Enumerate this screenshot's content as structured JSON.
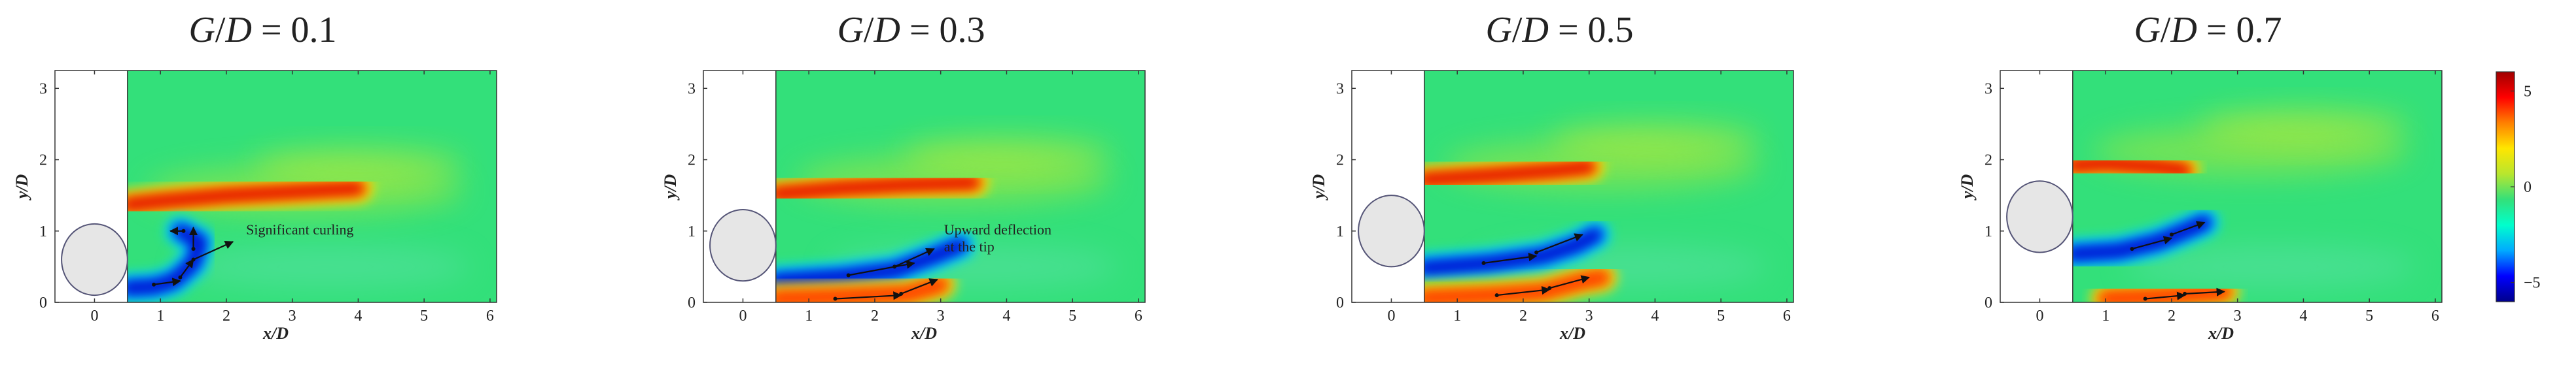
{
  "figure": {
    "type": "contour-panels"
  },
  "colors": {
    "background": "#ffffff",
    "cylinder_fill": "#e6e6e6",
    "cylinder_stroke": "#555577",
    "field_base": "#33e07a",
    "colorbar": [
      "#00008b",
      "#0000ff",
      "#00aaff",
      "#00ffcc",
      "#33e07a",
      "#b8e62e",
      "#ffe600",
      "#ff8000",
      "#ff0000",
      "#a00000"
    ]
  },
  "chart_data": [
    {
      "type": "heatmap",
      "title": "G/D = 0.1",
      "title_parts": {
        "italic_a": "G",
        "slash": "/",
        "italic_b": "D",
        "rest": " = 0.1"
      },
      "xlabel": "x/D",
      "ylabel": "y/D",
      "xlim": [
        -0.6,
        6.1
      ],
      "ylim": [
        0,
        3.25
      ],
      "xticks": [
        0,
        1,
        2,
        3,
        4,
        5,
        6
      ],
      "yticks": [
        0,
        1,
        2,
        3
      ],
      "masked_region": {
        "x": [
          -0.6,
          0.5
        ],
        "y": [
          0,
          3.25
        ]
      },
      "cylinder": {
        "cx": 0,
        "cy": 0.6,
        "r": 0.5
      },
      "annotation": {
        "lines": [
          "Significant curling"
        ],
        "x": 2.3,
        "y": 0.95
      },
      "vorticity_bands": [
        {
          "sign": "positive",
          "path": [
            [
              0.5,
              1.37
            ],
            [
              1.0,
              1.42
            ],
            [
              2.0,
              1.5
            ],
            [
              3.0,
              1.55
            ],
            [
              4.0,
              1.6
            ]
          ],
          "peak": 5
        },
        {
          "sign": "negative",
          "path": [
            [
              0.5,
              0.2
            ],
            [
              0.9,
              0.22
            ],
            [
              1.2,
              0.3
            ],
            [
              1.5,
              0.55
            ],
            [
              1.6,
              0.85
            ],
            [
              1.3,
              1.0
            ]
          ],
          "peak": -5
        },
        {
          "sign": "positive",
          "path": [
            [
              0.5,
              0.05
            ],
            [
              1.0,
              0.05
            ],
            [
              1.5,
              0.05
            ]
          ],
          "peak": 3
        }
      ],
      "arrows": [
        [
          [
            0.9,
            0.25
          ],
          [
            1.3,
            0.3
          ]
        ],
        [
          [
            1.3,
            0.35
          ],
          [
            1.5,
            0.6
          ]
        ],
        [
          [
            1.5,
            0.75
          ],
          [
            1.5,
            1.05
          ]
        ],
        [
          [
            1.5,
            0.6
          ],
          [
            2.1,
            0.85
          ]
        ],
        [
          [
            1.35,
            1.0
          ],
          [
            1.15,
            1.0
          ]
        ]
      ]
    },
    {
      "type": "heatmap",
      "title": "G/D = 0.3",
      "title_parts": {
        "italic_a": "G",
        "slash": "/",
        "italic_b": "D",
        "rest": " = 0.3"
      },
      "xlabel": "x/D",
      "ylabel": "y/D",
      "xlim": [
        -0.6,
        6.1
      ],
      "ylim": [
        0,
        3.25
      ],
      "xticks": [
        0,
        1,
        2,
        3,
        4,
        5,
        6
      ],
      "yticks": [
        0,
        1,
        2,
        3
      ],
      "masked_region": {
        "x": [
          -0.6,
          0.5
        ],
        "y": [
          0,
          3.25
        ]
      },
      "cylinder": {
        "cx": 0,
        "cy": 0.8,
        "r": 0.5
      },
      "annotation": {
        "lines": [
          "Upward deflection",
          "at the tip"
        ],
        "x": 3.05,
        "y": 0.95
      },
      "vorticity_bands": [
        {
          "sign": "positive",
          "path": [
            [
              0.5,
              1.52
            ],
            [
              1.5,
              1.6
            ],
            [
              2.5,
              1.65
            ],
            [
              3.5,
              1.68
            ]
          ],
          "peak": 5
        },
        {
          "sign": "negative",
          "path": [
            [
              0.5,
              0.3
            ],
            [
              1.5,
              0.36
            ],
            [
              2.3,
              0.45
            ],
            [
              2.9,
              0.65
            ],
            [
              3.3,
              0.8
            ]
          ],
          "peak": -5
        },
        {
          "sign": "positive",
          "path": [
            [
              0.5,
              0.05
            ],
            [
              1.5,
              0.08
            ],
            [
              2.5,
              0.12
            ],
            [
              3.0,
              0.25
            ]
          ],
          "peak": 4
        }
      ],
      "arrows": [
        [
          [
            1.6,
            0.38
          ],
          [
            2.6,
            0.55
          ]
        ],
        [
          [
            2.3,
            0.5
          ],
          [
            2.9,
            0.75
          ]
        ],
        [
          [
            1.4,
            0.05
          ],
          [
            2.4,
            0.1
          ]
        ],
        [
          [
            2.4,
            0.12
          ],
          [
            2.95,
            0.32
          ]
        ]
      ]
    },
    {
      "type": "heatmap",
      "title": "G/D = 0.5",
      "title_parts": {
        "italic_a": "G",
        "slash": "/",
        "italic_b": "D",
        "rest": " = 0.5"
      },
      "xlabel": "x/D",
      "ylabel": "y/D",
      "xlim": [
        -0.6,
        6.1
      ],
      "ylim": [
        0,
        3.25
      ],
      "xticks": [
        0,
        1,
        2,
        3,
        4,
        5,
        6
      ],
      "yticks": [
        0,
        1,
        2,
        3
      ],
      "masked_region": {
        "x": [
          -0.6,
          0.5
        ],
        "y": [
          0,
          3.25
        ]
      },
      "cylinder": {
        "cx": 0,
        "cy": 1.0,
        "r": 0.5
      },
      "annotation": null,
      "vorticity_bands": [
        {
          "sign": "positive",
          "path": [
            [
              0.5,
              1.72
            ],
            [
              1.5,
              1.78
            ],
            [
              2.5,
              1.85
            ],
            [
              3.0,
              1.9
            ]
          ],
          "peak": 5
        },
        {
          "sign": "negative",
          "path": [
            [
              0.5,
              0.48
            ],
            [
              1.5,
              0.55
            ],
            [
              2.3,
              0.65
            ],
            [
              2.8,
              0.8
            ],
            [
              3.1,
              0.95
            ]
          ],
          "peak": -5
        },
        {
          "sign": "positive",
          "path": [
            [
              0.5,
              0.06
            ],
            [
              1.5,
              0.1
            ],
            [
              2.3,
              0.15
            ],
            [
              2.9,
              0.3
            ],
            [
              3.2,
              0.35
            ]
          ],
          "peak": 4
        }
      ],
      "arrows": [
        [
          [
            1.4,
            0.55
          ],
          [
            2.2,
            0.65
          ]
        ],
        [
          [
            2.2,
            0.7
          ],
          [
            2.9,
            0.95
          ]
        ],
        [
          [
            1.6,
            0.1
          ],
          [
            2.4,
            0.18
          ]
        ],
        [
          [
            2.4,
            0.2
          ],
          [
            3.0,
            0.35
          ]
        ]
      ]
    },
    {
      "type": "heatmap",
      "title": "G/D = 0.7",
      "title_parts": {
        "italic_a": "G",
        "slash": "/",
        "italic_b": "D",
        "rest": " = 0.7"
      },
      "xlabel": "x/D",
      "ylabel": "y/D",
      "xlim": [
        -0.6,
        6.1
      ],
      "ylim": [
        0,
        3.25
      ],
      "xticks": [
        0,
        1,
        2,
        3,
        4,
        5,
        6
      ],
      "yticks": [
        0,
        1,
        2,
        3
      ],
      "masked_region": {
        "x": [
          -0.6,
          0.5
        ],
        "y": [
          0,
          3.25
        ]
      },
      "cylinder": {
        "cx": 0,
        "cy": 1.2,
        "r": 0.5
      },
      "annotation": null,
      "vorticity_bands": [
        {
          "sign": "positive",
          "path": [
            [
              0.5,
              1.92
            ],
            [
              1.0,
              1.95
            ],
            [
              1.8,
              1.9
            ],
            [
              2.2,
              1.85
            ]
          ],
          "peak": 5
        },
        {
          "sign": "negative",
          "path": [
            [
              0.5,
              0.68
            ],
            [
              1.2,
              0.72
            ],
            [
              1.8,
              0.85
            ],
            [
              2.2,
              1.0
            ],
            [
              2.5,
              1.12
            ]
          ],
          "peak": -5
        },
        {
          "sign": "positive",
          "path": [
            [
              1.0,
              0.05
            ],
            [
              1.8,
              0.08
            ],
            [
              2.4,
              0.12
            ],
            [
              2.8,
              0.15
            ]
          ],
          "peak": 3
        }
      ],
      "arrows": [
        [
          [
            1.4,
            0.75
          ],
          [
            2.0,
            0.9
          ]
        ],
        [
          [
            2.0,
            0.95
          ],
          [
            2.5,
            1.12
          ]
        ],
        [
          [
            1.6,
            0.05
          ],
          [
            2.2,
            0.1
          ]
        ],
        [
          [
            2.2,
            0.12
          ],
          [
            2.8,
            0.15
          ]
        ]
      ]
    }
  ],
  "colorbar": {
    "min": -6,
    "max": 6,
    "ticks": [
      5,
      0,
      -5
    ],
    "tick_labels": [
      "5",
      "0",
      "−5"
    ]
  }
}
